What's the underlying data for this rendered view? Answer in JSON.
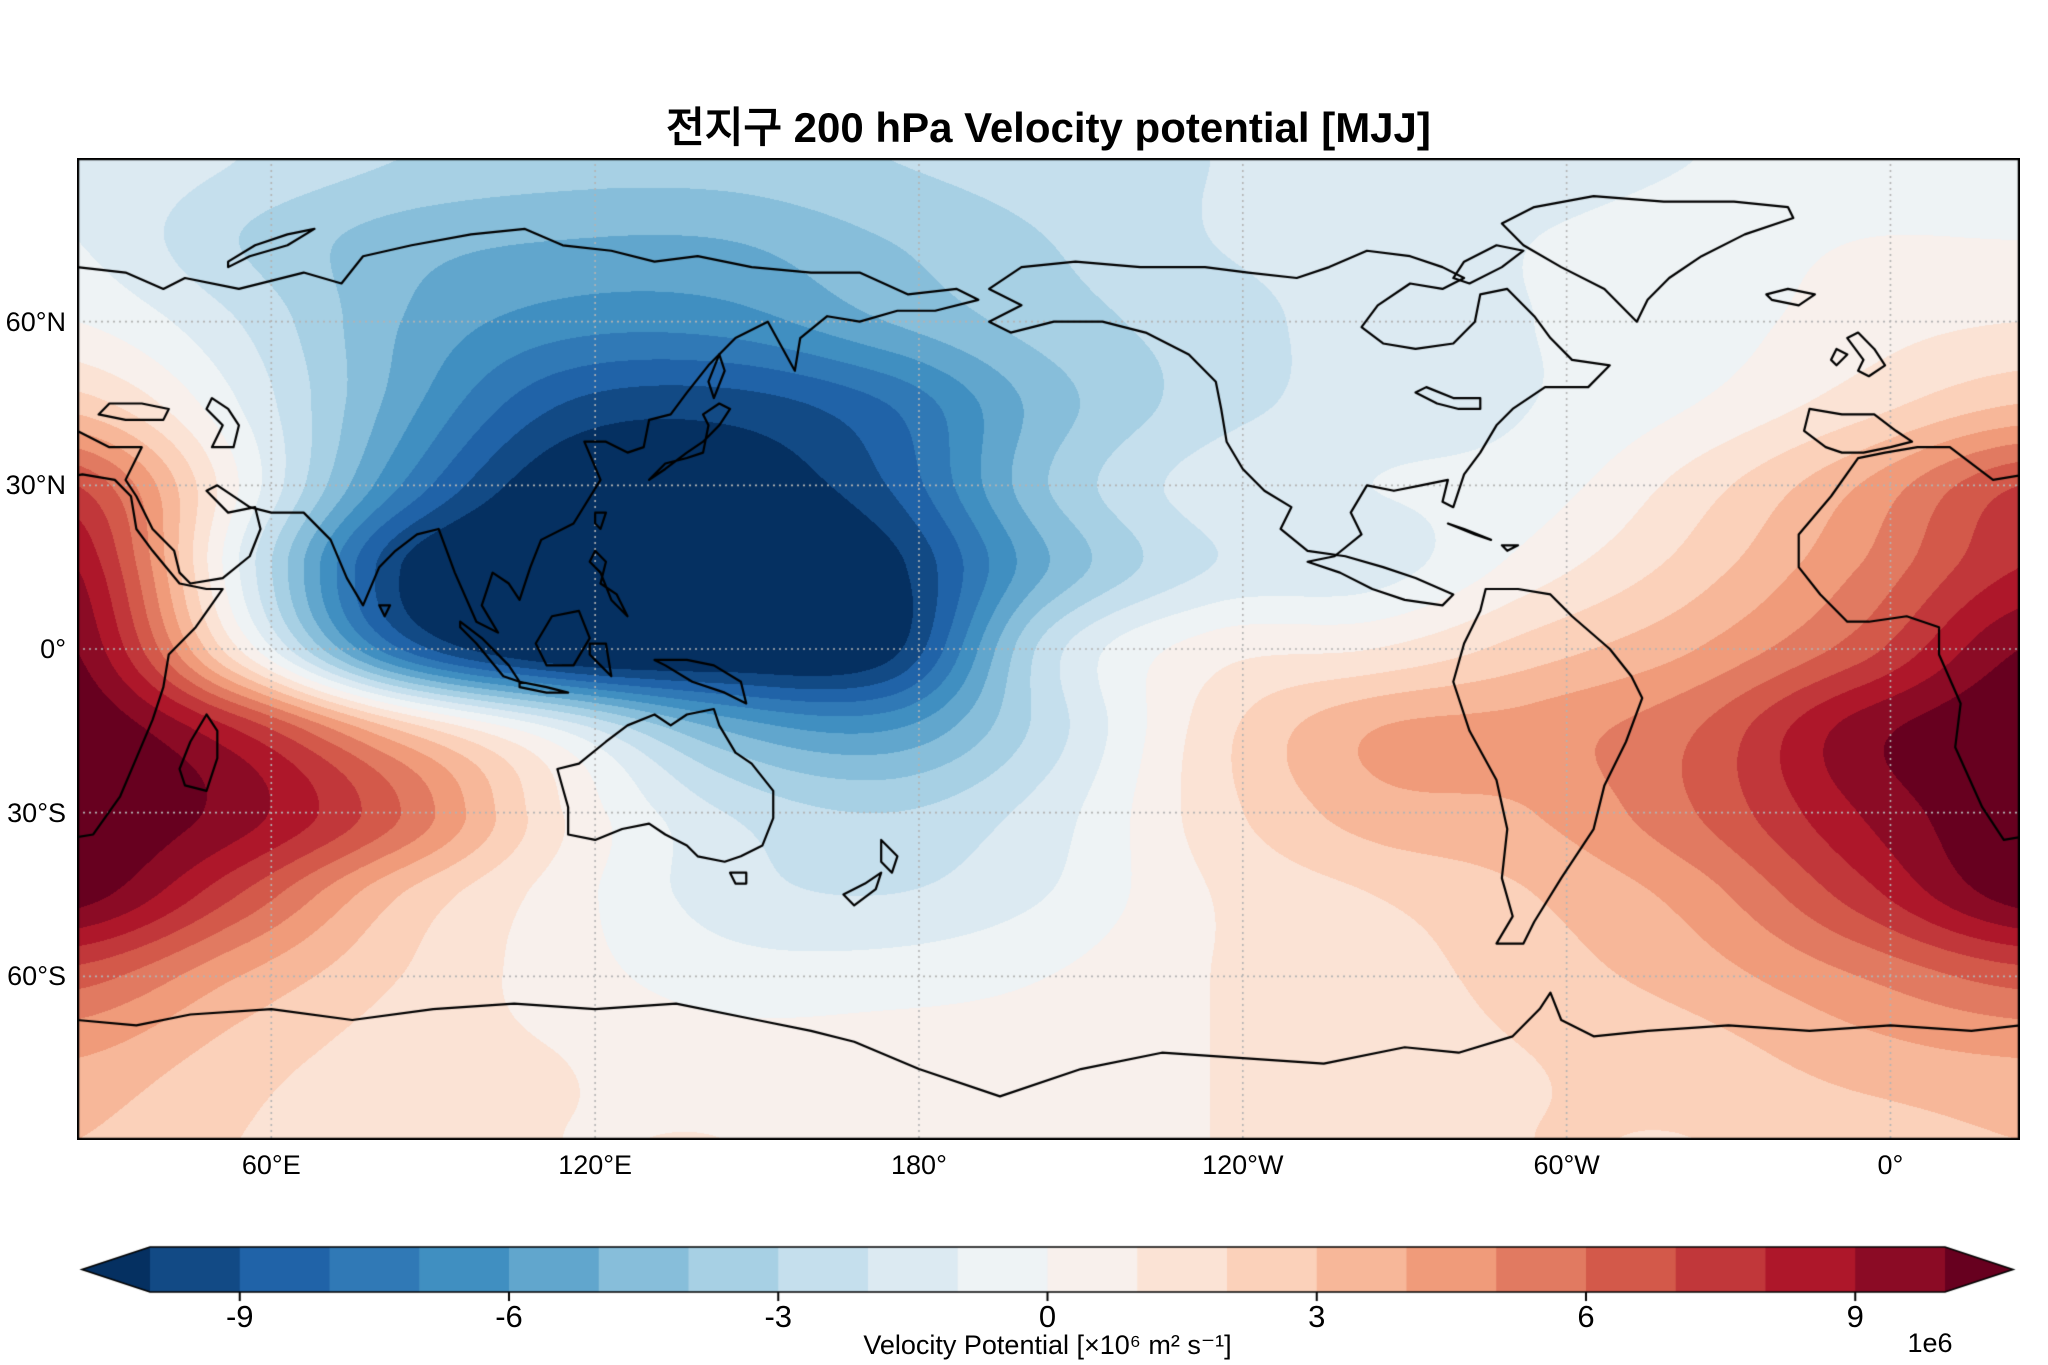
{
  "title": "전지구 200 hPa Velocity potential [MJJ]",
  "chart_data": {
    "type": "heatmap",
    "subtype": "filled-contour-world-map",
    "title": "전지구 200 hPa Velocity potential [MJJ]",
    "variable": "200 hPa velocity potential",
    "season": "MJJ",
    "colorbar_label": "Velocity Potential [×10⁶ m² s⁻¹]",
    "offset_label": "1e6",
    "projection": {
      "kind": "equirectangular (PlateCarree, Pacific-centered)",
      "lon_min": 24,
      "lon_max": 384,
      "lat_min": -90,
      "lat_max": 90
    },
    "grid": {
      "lons": [
        24,
        54,
        84,
        114,
        144,
        174,
        204,
        234,
        264,
        294,
        324,
        354,
        384
      ],
      "lats": [
        90,
        75,
        60,
        45,
        30,
        15,
        0,
        -15,
        -30,
        -45,
        -60,
        -75,
        -90
      ]
    },
    "values_1e6": [
      [
        -1,
        -2,
        -3,
        -3.5,
        -3.5,
        -3,
        -2.5,
        -2,
        -1.5,
        -1.5,
        -1,
        -0.5,
        -0.5
      ],
      [
        -1,
        -3,
        -4.5,
        -5,
        -5,
        -4,
        -3,
        -2,
        -1.5,
        -1,
        -0.5,
        0,
        0
      ],
      [
        0,
        -2,
        -5,
        -6.5,
        -6.5,
        -5,
        -3.5,
        -2.5,
        -1.5,
        -1,
        -0.5,
        0.5,
        1
      ],
      [
        2.5,
        -1,
        -5.5,
        -9,
        -9.5,
        -8,
        -4.5,
        -2.5,
        -1.5,
        -1,
        0,
        1.5,
        3
      ],
      [
        7,
        0,
        -7,
        -11,
        -11,
        -9,
        -4,
        -1.5,
        -1,
        -0.5,
        1.5,
        4,
        7
      ],
      [
        9,
        -1,
        -10,
        -12,
        -12,
        -10.5,
        -5,
        -2,
        -1.5,
        0.5,
        2.5,
        5,
        8
      ],
      [
        10,
        1,
        -8,
        -11.5,
        -11.5,
        -10.5,
        -2.5,
        0.5,
        1,
        2.5,
        4,
        6.5,
        10
      ],
      [
        11,
        8,
        3,
        -1,
        -5,
        -6,
        -2.5,
        1.5,
        4,
        4.5,
        6,
        9.5,
        11
      ],
      [
        11,
        9.5,
        6,
        1,
        -2,
        -3,
        -1.5,
        1.5,
        3.5,
        4,
        6,
        9,
        11
      ],
      [
        10.5,
        7,
        3,
        0.5,
        -1.5,
        -2,
        -1,
        1,
        2,
        3,
        4.5,
        7.5,
        10.5
      ],
      [
        6.5,
        4,
        2,
        0.5,
        -0.5,
        -0.5,
        0,
        1,
        1.5,
        2.5,
        3.5,
        5,
        6.5
      ],
      [
        4,
        2.5,
        1.5,
        1,
        0.5,
        0.5,
        0.5,
        1,
        1.5,
        2,
        2.5,
        3.5,
        4
      ],
      [
        3,
        2,
        1.5,
        1,
        1,
        0.5,
        0.5,
        1,
        1.5,
        2,
        2,
        2.5,
        3
      ]
    ],
    "levels": {
      "vmin": -10,
      "vmax": 10,
      "step": 1,
      "extend": "both"
    },
    "colormap": {
      "name": "RdBu_r",
      "anchors": [
        "#053061",
        "#2166ac",
        "#4393c3",
        "#92c5de",
        "#d1e5f0",
        "#f7f7f7",
        "#fddbc7",
        "#f4a582",
        "#d6604d",
        "#b2182b",
        "#67001f"
      ]
    },
    "grid_style": {
      "color": "#b3b3b3",
      "dash": "dotted"
    },
    "coastline_color": "#000000",
    "xticks": [
      {
        "lon": 60,
        "label": "60°E"
      },
      {
        "lon": 120,
        "label": "120°E"
      },
      {
        "lon": 180,
        "label": "180°"
      },
      {
        "lon": 240,
        "label": "120°W"
      },
      {
        "lon": 300,
        "label": "60°W"
      },
      {
        "lon": 360,
        "label": "0°"
      }
    ],
    "yticks": [
      {
        "lat": 60,
        "label": "60°N"
      },
      {
        "lat": 30,
        "label": "30°N"
      },
      {
        "lat": 0,
        "label": "0°"
      },
      {
        "lat": -30,
        "label": "30°S"
      },
      {
        "lat": -60,
        "label": "60°S"
      }
    ],
    "colorbar_ticks": [
      -9,
      -6,
      -3,
      0,
      3,
      6,
      9
    ]
  }
}
